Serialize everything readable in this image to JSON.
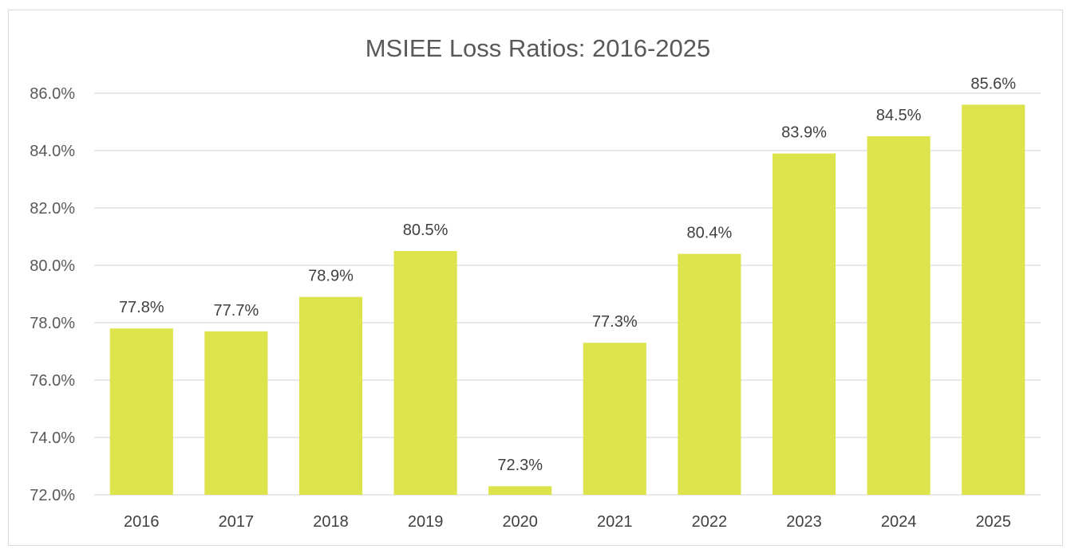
{
  "chart_data": {
    "type": "bar",
    "title": "MSIEE Loss Ratios: 2016-2025",
    "xlabel": "",
    "ylabel": "",
    "categories": [
      "2016",
      "2017",
      "2018",
      "2019",
      "2020",
      "2021",
      "2022",
      "2023",
      "2024",
      "2025"
    ],
    "values": [
      77.8,
      77.7,
      78.9,
      80.5,
      72.3,
      77.3,
      80.4,
      83.9,
      84.5,
      85.6
    ],
    "data_labels": [
      "77.8%",
      "77.7%",
      "78.9%",
      "80.5%",
      "72.3%",
      "77.3%",
      "80.4%",
      "83.9%",
      "84.5%",
      "85.6%"
    ],
    "ylim": [
      72,
      86
    ],
    "yticks": [
      72,
      74,
      76,
      78,
      80,
      82,
      84,
      86
    ],
    "ytick_labels": [
      "72.0%",
      "74.0%",
      "76.0%",
      "78.0%",
      "80.0%",
      "82.0%",
      "84.0%",
      "86.0%"
    ],
    "grid": true,
    "legend": "none",
    "bar_color": "#dce34b"
  }
}
